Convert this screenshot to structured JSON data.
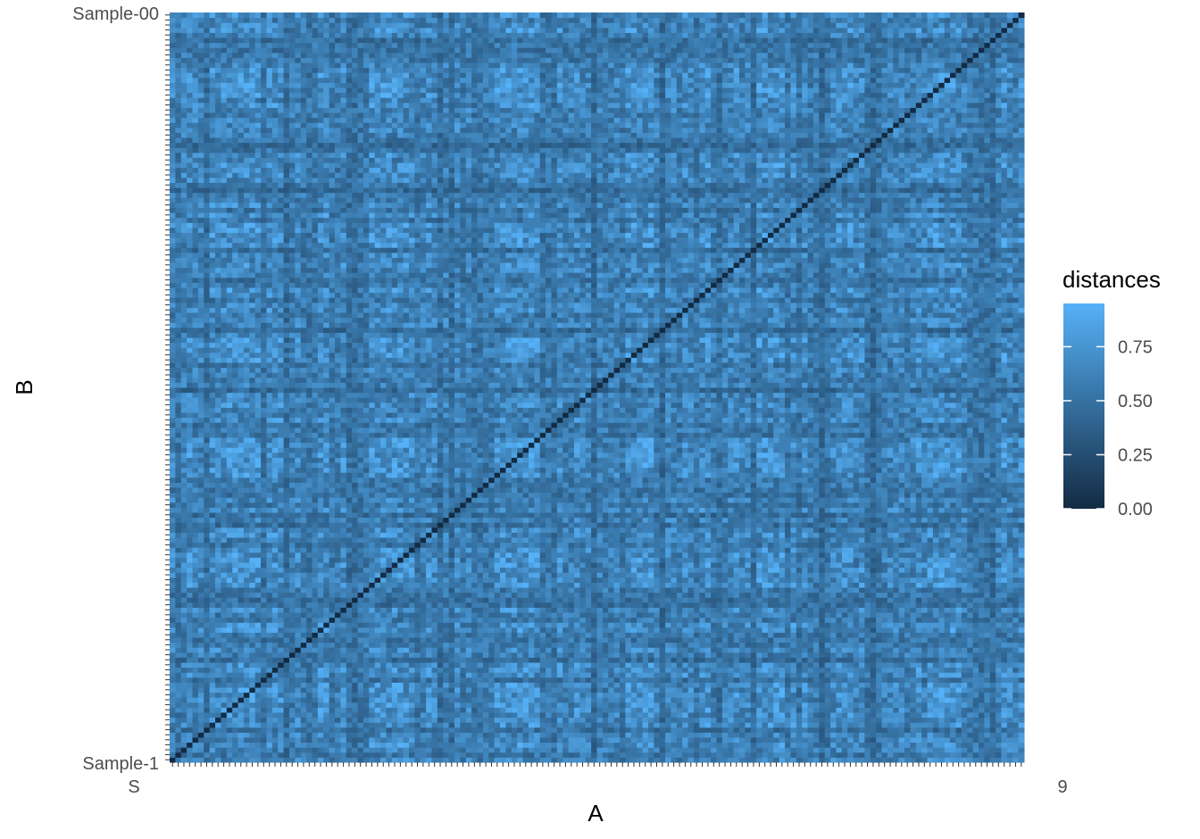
{
  "chart_data": {
    "type": "heatmap",
    "x_axis_title": "A",
    "y_axis_title": "B",
    "legend_title": "distances",
    "legend_tick_values": [
      0.0,
      0.25,
      0.5,
      0.75
    ],
    "legend_tick_labels": [
      "0.00",
      "0.25",
      "0.50",
      "0.75"
    ],
    "color_scale": {
      "low": "#132B43",
      "high": "#56B1F7"
    },
    "value_range": [
      0,
      0.95
    ],
    "n_samples": 150,
    "sample_prefix": "Sample-",
    "diagonal_value": 0,
    "top_sample_label": "Sample-00",
    "bottom_sample_label": "Sample-1",
    "x_first_label": "S",
    "x_last_label": "9"
  }
}
